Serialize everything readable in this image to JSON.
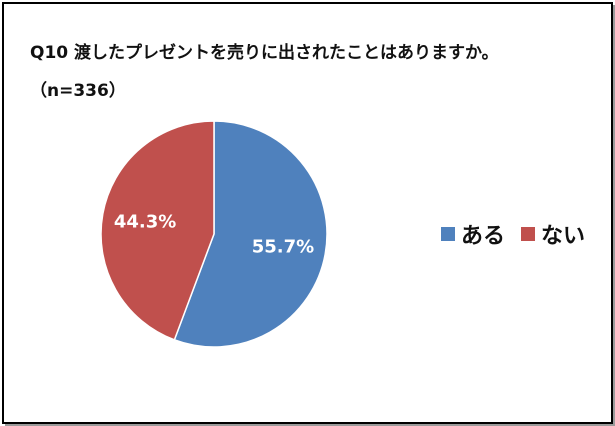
{
  "chart_data": {
    "type": "pie",
    "title": "Q10 渡したプレゼントを売りに出されたことはありますか。",
    "subtitle": "（n=336）",
    "categories": [
      "ある",
      "ない"
    ],
    "values": [
      55.7,
      44.3
    ],
    "data_labels": [
      "55.7%",
      "44.3%"
    ],
    "colors": [
      "#4F81BD",
      "#C0504D"
    ],
    "legend_position": "right"
  }
}
